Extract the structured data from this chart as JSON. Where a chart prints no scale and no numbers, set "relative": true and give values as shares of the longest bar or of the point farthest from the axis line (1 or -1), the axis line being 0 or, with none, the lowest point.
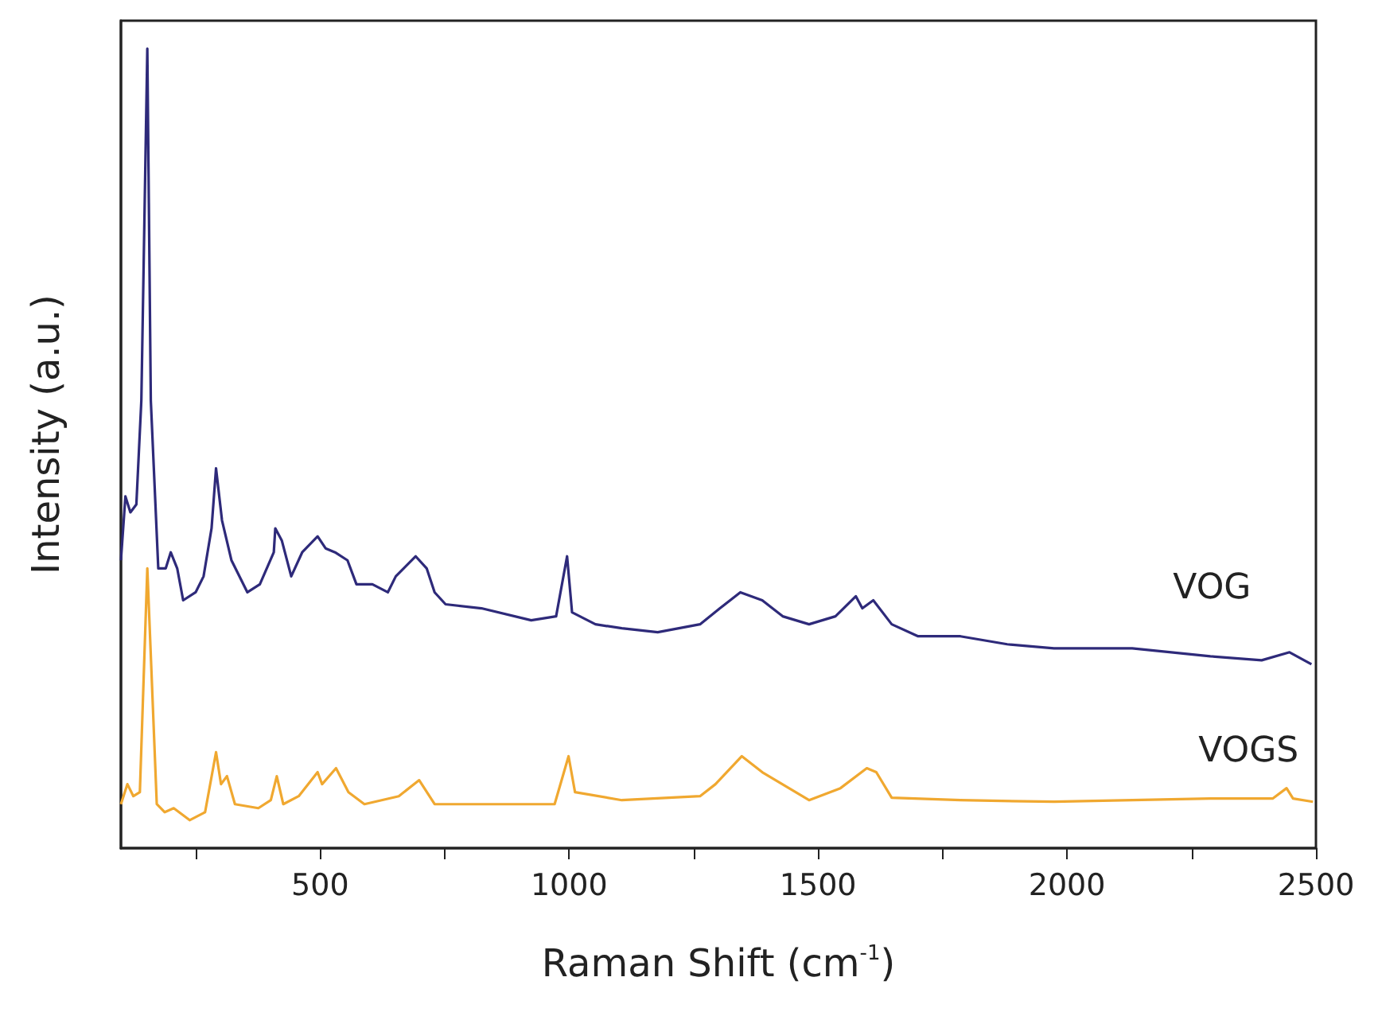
{
  "chart_data": {
    "type": "line",
    "relative": true,
    "xlabel": "Raman Shift (cm$^{-1}$)",
    "ylabel": "Intensity (a.u.)",
    "xlim": [
      100,
      2500
    ],
    "xticks": [
      {
        "value": 250,
        "label": null
      },
      500,
      {
        "value": 750,
        "label": null
      },
      1000,
      {
        "value": 1250,
        "label": null
      },
      1500,
      {
        "value": 1750,
        "label": null
      },
      2000,
      {
        "value": 2250,
        "label": null
      },
      2500
    ],
    "grid": false,
    "legend": false,
    "marker": "none",
    "line_style": "solid",
    "series": [
      {
        "name": "VOG",
        "color": "#2e2a7a",
        "x": [
          100,
          109,
          119,
          131,
          141,
          153,
          160,
          175,
          190,
          200,
          213,
          225,
          250,
          266,
          282,
          291,
          303,
          322,
          354,
          379,
          407,
          410,
          423,
          442,
          464,
          495,
          511,
          530,
          555,
          573,
          605,
          636,
          652,
          692,
          714,
          730,
          752,
          824,
          924,
          974,
          996,
          1006,
          1053,
          1106,
          1178,
          1263,
          1303,
          1344,
          1388,
          1429,
          1482,
          1535,
          1576,
          1589,
          1611,
          1648,
          1701,
          1786,
          1880,
          1974,
          2131,
          2288,
          2391,
          2447,
          2491
        ],
        "values": [
          0.36,
          0.44,
          0.42,
          0.43,
          0.56,
          1.0,
          0.56,
          0.35,
          0.35,
          0.37,
          0.35,
          0.31,
          0.32,
          0.34,
          0.4,
          0.475,
          0.41,
          0.36,
          0.32,
          0.33,
          0.37,
          0.4,
          0.385,
          0.34,
          0.37,
          0.39,
          0.375,
          0.37,
          0.36,
          0.33,
          0.33,
          0.32,
          0.34,
          0.365,
          0.35,
          0.32,
          0.305,
          0.3,
          0.285,
          0.29,
          0.365,
          0.295,
          0.28,
          0.275,
          0.27,
          0.28,
          0.3,
          0.32,
          0.31,
          0.29,
          0.28,
          0.29,
          0.315,
          0.3,
          0.31,
          0.28,
          0.265,
          0.265,
          0.255,
          0.25,
          0.25,
          0.24,
          0.235,
          0.245,
          0.23
        ]
      },
      {
        "name": "VOGS",
        "color": "#f0a830",
        "x": [
          100,
          113,
          125,
          138,
          153,
          172,
          188,
          206,
          238,
          269,
          291,
          301,
          313,
          329,
          376,
          401,
          413,
          426,
          457,
          495,
          504,
          532,
          557,
          589,
          658,
          699,
          730,
          802,
          971,
          999,
          1012,
          1106,
          1263,
          1294,
          1347,
          1388,
          1482,
          1545,
          1598,
          1617,
          1648,
          1786,
          1974,
          2288,
          2413,
          2441,
          2454,
          2494
        ],
        "values": [
          0.055,
          0.08,
          0.065,
          0.07,
          0.35,
          0.055,
          0.045,
          0.05,
          0.035,
          0.045,
          0.12,
          0.08,
          0.09,
          0.055,
          0.05,
          0.06,
          0.09,
          0.055,
          0.065,
          0.095,
          0.08,
          0.1,
          0.07,
          0.055,
          0.065,
          0.085,
          0.055,
          0.055,
          0.055,
          0.115,
          0.07,
          0.06,
          0.065,
          0.08,
          0.115,
          0.095,
          0.06,
          0.075,
          0.1,
          0.095,
          0.063,
          0.06,
          0.058,
          0.062,
          0.062,
          0.075,
          0.062,
          0.058
        ]
      }
    ]
  }
}
